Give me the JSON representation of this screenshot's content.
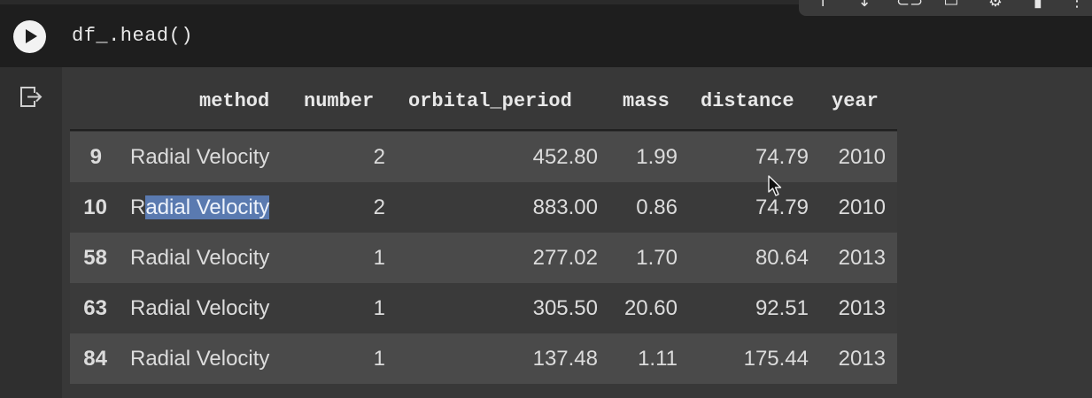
{
  "cell": {
    "code": "df_.head()"
  },
  "table": {
    "columns": [
      "method",
      "number",
      "orbital_period",
      "mass",
      "distance",
      "year"
    ],
    "rows": [
      {
        "index": "9",
        "method": "Radial Velocity",
        "number": "2",
        "orbital_period": "452.80",
        "mass": "1.99",
        "distance": "74.79",
        "year": "2010"
      },
      {
        "index": "10",
        "method_pre": "R",
        "method_sel": "adial Velocity",
        "number": "2",
        "orbital_period": "883.00",
        "mass": "0.86",
        "distance": "74.79",
        "year": "2010"
      },
      {
        "index": "58",
        "method": "Radial Velocity",
        "number": "1",
        "orbital_period": "277.02",
        "mass": "1.70",
        "distance": "80.64",
        "year": "2013"
      },
      {
        "index": "63",
        "method": "Radial Velocity",
        "number": "1",
        "orbital_period": "305.50",
        "mass": "20.60",
        "distance": "92.51",
        "year": "2013"
      },
      {
        "index": "84",
        "method": "Radial Velocity",
        "number": "1",
        "orbital_period": "137.48",
        "mass": "1.11",
        "distance": "175.44",
        "year": "2013"
      }
    ]
  },
  "icons": {
    "run": "play-icon",
    "output": "output-action-icon",
    "toolbar": [
      "arrow-up-icon",
      "arrow-down-icon",
      "link-icon",
      "comment-icon",
      "gear-icon",
      "delete-icon",
      "more-icon"
    ]
  },
  "colors": {
    "cell_background": "#1e1e1e",
    "output_background": "#383838",
    "row_alt": "#4a4a4a",
    "selection": "#5a7ab0"
  }
}
